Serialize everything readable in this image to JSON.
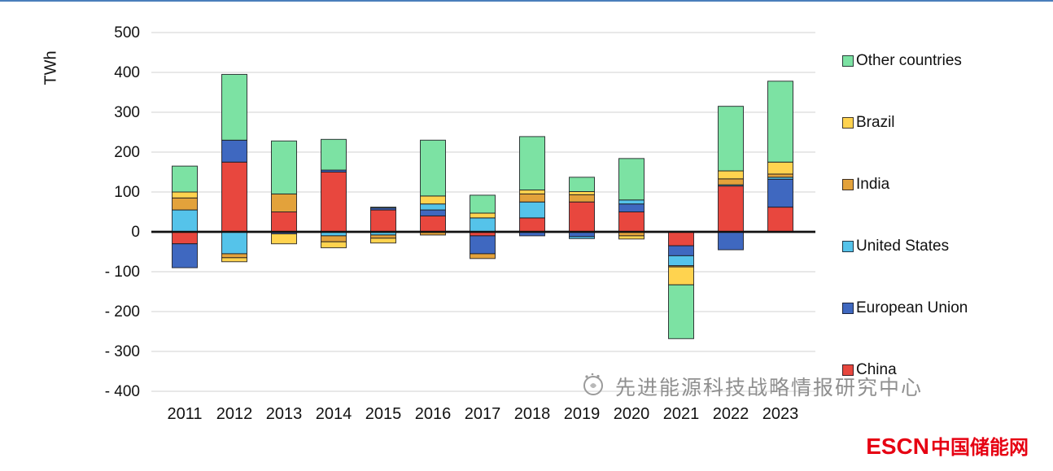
{
  "page": {
    "background": "#ffffff",
    "top_border_color": "#4a7ebb"
  },
  "chart_data": {
    "type": "bar",
    "stacked": true,
    "title": "",
    "xlabel": "",
    "ylabel": "TWh",
    "ylim": [
      -400,
      500
    ],
    "grid": true,
    "legend_position": "right",
    "x": [
      "2011",
      "2012",
      "2013",
      "2014",
      "2015",
      "2016",
      "2017",
      "2018",
      "2019",
      "2020",
      "2021",
      "2022",
      "2023"
    ],
    "y_ticks": [
      {
        "value": 500,
        "label": "500"
      },
      {
        "value": 400,
        "label": "400"
      },
      {
        "value": 300,
        "label": "300"
      },
      {
        "value": 200,
        "label": "200"
      },
      {
        "value": 100,
        "label": "100"
      },
      {
        "value": 0,
        "label": "0"
      },
      {
        "value": -100,
        "label": "- 100"
      },
      {
        "value": -200,
        "label": "- 200"
      },
      {
        "value": -300,
        "label": "- 300"
      },
      {
        "value": -400,
        "label": "- 400"
      }
    ],
    "series": [
      {
        "name": "China",
        "color": "#e8473e",
        "values": [
          -30,
          175,
          50,
          150,
          55,
          40,
          -10,
          35,
          75,
          50,
          -35,
          115,
          62
        ]
      },
      {
        "name": "European Union",
        "color": "#3f68c0",
        "values": [
          -60,
          55,
          -5,
          5,
          5,
          15,
          -45,
          -10,
          -12,
          20,
          -25,
          -45,
          70
        ]
      },
      {
        "name": "United States",
        "color": "#55c3ea",
        "values": [
          55,
          -55,
          0,
          -10,
          -8,
          15,
          35,
          40,
          -5,
          10,
          -25,
          3,
          5
        ]
      },
      {
        "name": "India",
        "color": "#e3a23b",
        "values": [
          30,
          -10,
          45,
          -15,
          -8,
          -8,
          -12,
          20,
          18,
          -10,
          -3,
          15,
          8
        ]
      },
      {
        "name": "Brazil",
        "color": "#ffd34f",
        "values": [
          15,
          -10,
          -25,
          -15,
          -12,
          20,
          12,
          10,
          8,
          -8,
          -45,
          20,
          30
        ]
      },
      {
        "name": "Other countries",
        "color": "#7ce2a3",
        "values": [
          65,
          165,
          133,
          77,
          2,
          140,
          45,
          134,
          36,
          104,
          -135,
          162,
          203
        ]
      }
    ],
    "legend_order": [
      "Other countries",
      "Brazil",
      "India",
      "United States",
      "European Union",
      "China"
    ]
  },
  "watermark": {
    "text": "先进能源科技战略情报研究中心"
  },
  "footer_logo": {
    "escn": "ESCN",
    "cn": "中国储能网",
    "color": "#e60012"
  }
}
